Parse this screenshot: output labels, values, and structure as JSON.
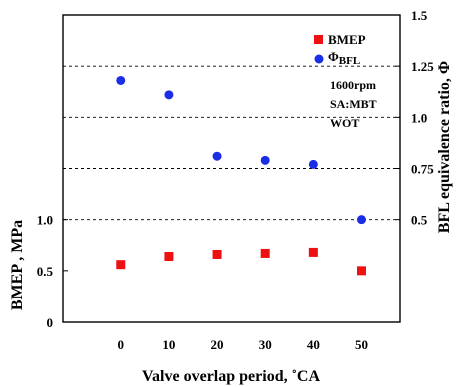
{
  "chart_data": {
    "type": "scatter",
    "xlabel": "Valve overlap period, ˚CA",
    "ylabel_left": "BMEP , MPa",
    "ylabel_right": "BFL equivalence ratio,  Φ",
    "x_ticks": [
      "0",
      "10",
      "20",
      "30",
      "40",
      "50"
    ],
    "left_ticks": [
      {
        "label": "0",
        "value": 0
      },
      {
        "label": "0.5",
        "value": 0.5
      },
      {
        "label": "1.0",
        "value": 1.0
      }
    ],
    "right_ticks": [
      {
        "label": "0.5",
        "value": 0.5
      },
      {
        "label": "0.75",
        "value": 0.75
      },
      {
        "label": "1.0",
        "value": 1.0
      },
      {
        "label": "1.25",
        "value": 1.25
      },
      {
        "label": "1.5",
        "value": 1.5
      }
    ],
    "xlim": [
      -12,
      58
    ],
    "left_ylim": [
      0,
      3.0
    ],
    "right_ylim": [
      0,
      1.5
    ],
    "gridlines_right": [
      0.5,
      0.75,
      1.0,
      1.25
    ],
    "series": [
      {
        "name": "BMEP",
        "axis": "left",
        "marker": "square",
        "color": "#ee1111",
        "x": [
          0,
          10,
          20,
          30,
          40,
          50
        ],
        "y": [
          0.56,
          0.64,
          0.66,
          0.67,
          0.68,
          0.5
        ]
      },
      {
        "name": "Φ",
        "name_sub": "BFL",
        "axis": "right",
        "marker": "circle",
        "color": "#1a2ee6",
        "x": [
          0,
          10,
          20,
          30,
          40,
          50
        ],
        "y": [
          1.18,
          1.11,
          0.81,
          0.79,
          0.77,
          0.5
        ]
      }
    ],
    "annotations": [
      "1600rpm",
      "SA:MBT",
      "WOT"
    ],
    "legend_position": "top-right"
  }
}
